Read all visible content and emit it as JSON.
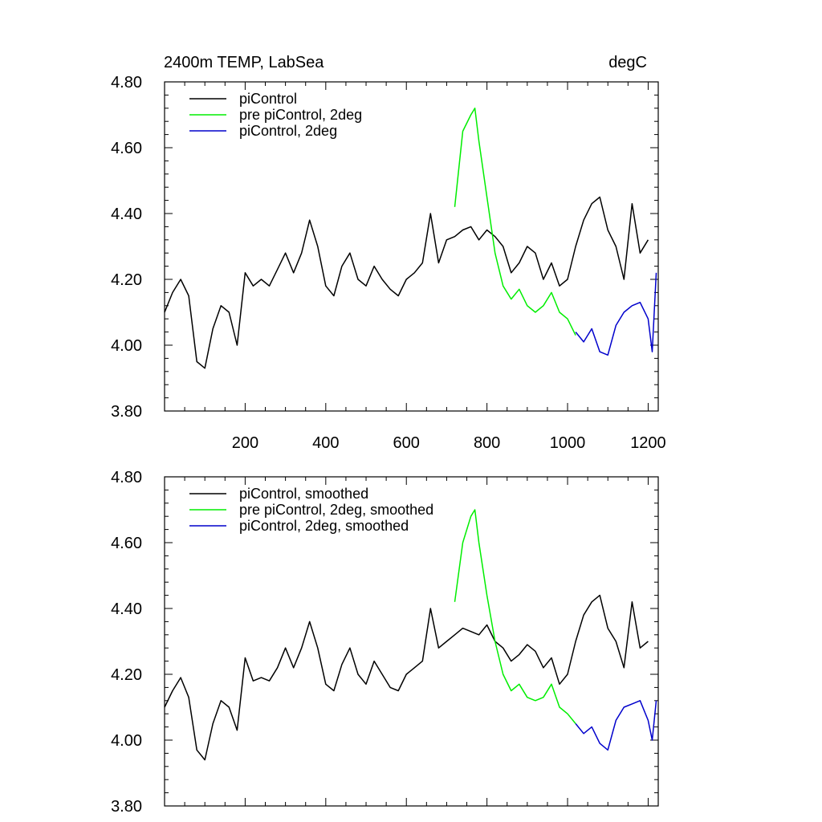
{
  "chart_data": [
    {
      "type": "line",
      "title": "2400m TEMP, LabSea",
      "units": "degC",
      "xlabel": "",
      "ylabel": "",
      "xlim": [
        0,
        1225
      ],
      "ylim": [
        3.8,
        4.8
      ],
      "xticks": [
        200,
        400,
        600,
        800,
        1000,
        1200
      ],
      "xtick_labels": [
        "200",
        "400",
        "600",
        "800",
        "1000",
        "1200"
      ],
      "yticks": [
        3.8,
        4.0,
        4.2,
        4.4,
        4.6,
        4.8
      ],
      "ytick_labels": [
        "3.80",
        "4.00",
        "4.20",
        "4.40",
        "4.60",
        "4.80"
      ],
      "grid": false,
      "legend_position": "top-left",
      "series": [
        {
          "name": "piControl",
          "color": "#000000",
          "x": [
            0,
            20,
            40,
            60,
            80,
            100,
            120,
            140,
            160,
            180,
            200,
            220,
            240,
            260,
            280,
            300,
            320,
            340,
            360,
            380,
            400,
            420,
            440,
            460,
            480,
            500,
            520,
            540,
            560,
            580,
            600,
            620,
            640,
            660,
            680,
            700,
            720,
            740,
            760,
            780,
            800,
            820,
            840,
            860,
            880,
            900,
            920,
            940,
            960,
            980,
            1000,
            1020,
            1040,
            1060,
            1080,
            1100,
            1120,
            1140,
            1160,
            1180,
            1200
          ],
          "y": [
            4.1,
            4.16,
            4.2,
            4.15,
            3.95,
            3.93,
            4.05,
            4.12,
            4.1,
            4.0,
            4.22,
            4.18,
            4.2,
            4.18,
            4.23,
            4.28,
            4.22,
            4.28,
            4.38,
            4.3,
            4.18,
            4.15,
            4.24,
            4.28,
            4.2,
            4.18,
            4.24,
            4.2,
            4.17,
            4.15,
            4.2,
            4.22,
            4.25,
            4.4,
            4.25,
            4.32,
            4.33,
            4.35,
            4.36,
            4.32,
            4.35,
            4.33,
            4.3,
            4.22,
            4.25,
            4.3,
            4.28,
            4.2,
            4.25,
            4.18,
            4.2,
            4.3,
            4.38,
            4.43,
            4.45,
            4.35,
            4.3,
            4.2,
            4.43,
            4.28,
            4.32
          ]
        },
        {
          "name": "pre piControl, 2deg",
          "color": "#00ee00",
          "x": [
            720,
            740,
            760,
            770,
            780,
            800,
            820,
            840,
            860,
            880,
            900,
            920,
            940,
            960,
            980,
            1000,
            1020
          ],
          "y": [
            4.42,
            4.65,
            4.7,
            4.72,
            4.62,
            4.45,
            4.28,
            4.18,
            4.14,
            4.17,
            4.12,
            4.1,
            4.12,
            4.16,
            4.1,
            4.08,
            4.03
          ]
        },
        {
          "name": "piControl, 2deg",
          "color": "#0000cc",
          "x": [
            1020,
            1040,
            1060,
            1080,
            1100,
            1120,
            1140,
            1160,
            1180,
            1200,
            1210,
            1220
          ],
          "y": [
            4.04,
            4.01,
            4.05,
            3.98,
            3.97,
            4.06,
            4.1,
            4.12,
            4.13,
            4.08,
            3.98,
            4.22
          ]
        }
      ]
    },
    {
      "type": "line",
      "title": "",
      "units": "",
      "xlabel": "",
      "ylabel": "",
      "xlim": [
        0,
        1225
      ],
      "ylim": [
        3.8,
        4.8
      ],
      "xticks": [
        200,
        400,
        600,
        800,
        1000,
        1200
      ],
      "yticks": [
        3.8,
        4.0,
        4.2,
        4.4,
        4.6,
        4.8
      ],
      "ytick_labels": [
        "3.80",
        "4.00",
        "4.20",
        "4.40",
        "4.60",
        "4.80"
      ],
      "grid": false,
      "legend_position": "top-left",
      "series": [
        {
          "name": "piControl, smoothed",
          "color": "#000000",
          "x": [
            0,
            20,
            40,
            60,
            80,
            100,
            120,
            140,
            160,
            180,
            200,
            220,
            240,
            260,
            280,
            300,
            320,
            340,
            360,
            380,
            400,
            420,
            440,
            460,
            480,
            500,
            520,
            540,
            560,
            580,
            600,
            620,
            640,
            660,
            680,
            700,
            720,
            740,
            760,
            780,
            800,
            820,
            840,
            860,
            880,
            900,
            920,
            940,
            960,
            980,
            1000,
            1020,
            1040,
            1060,
            1080,
            1100,
            1120,
            1140,
            1160,
            1180,
            1200
          ],
          "y": [
            4.1,
            4.15,
            4.19,
            4.13,
            3.97,
            3.94,
            4.05,
            4.12,
            4.1,
            4.03,
            4.25,
            4.18,
            4.19,
            4.18,
            4.22,
            4.28,
            4.22,
            4.28,
            4.36,
            4.28,
            4.17,
            4.15,
            4.23,
            4.28,
            4.2,
            4.17,
            4.24,
            4.2,
            4.16,
            4.15,
            4.2,
            4.22,
            4.24,
            4.4,
            4.28,
            4.3,
            4.32,
            4.34,
            4.33,
            4.32,
            4.35,
            4.3,
            4.28,
            4.24,
            4.26,
            4.29,
            4.27,
            4.22,
            4.25,
            4.17,
            4.2,
            4.3,
            4.38,
            4.42,
            4.44,
            4.34,
            4.3,
            4.22,
            4.42,
            4.28,
            4.3
          ]
        },
        {
          "name": "pre piControl, 2deg, smoothed",
          "color": "#00ee00",
          "x": [
            720,
            740,
            760,
            770,
            780,
            800,
            820,
            840,
            860,
            880,
            900,
            920,
            940,
            960,
            980,
            1000,
            1020
          ],
          "y": [
            4.42,
            4.6,
            4.68,
            4.7,
            4.6,
            4.44,
            4.3,
            4.2,
            4.15,
            4.17,
            4.13,
            4.12,
            4.13,
            4.17,
            4.1,
            4.08,
            4.05
          ]
        },
        {
          "name": "piControl, 2deg, smoothed",
          "color": "#0000cc",
          "x": [
            1020,
            1040,
            1060,
            1080,
            1100,
            1120,
            1140,
            1160,
            1180,
            1200,
            1210,
            1220
          ],
          "y": [
            4.05,
            4.02,
            4.04,
            3.99,
            3.97,
            4.06,
            4.1,
            4.11,
            4.12,
            4.06,
            4.0,
            4.12
          ]
        }
      ]
    }
  ]
}
